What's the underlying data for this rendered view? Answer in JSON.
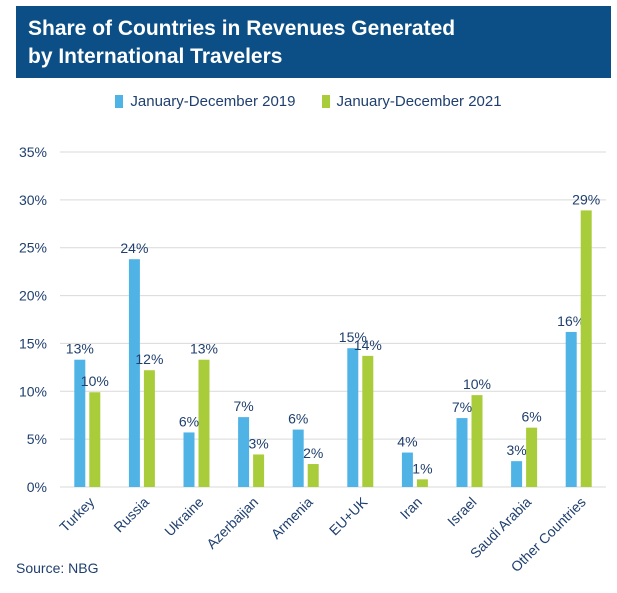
{
  "header": {
    "title_line1": "Share of Countries in Revenues Generated",
    "title_line2": "by International Travelers"
  },
  "colors": {
    "series_2019": "#4fb3e6",
    "series_2021": "#a9cd3a",
    "header_bg": "#0b4f86",
    "text": "#1f3f6e"
  },
  "source": "Source: NBG",
  "chart_data": {
    "type": "bar",
    "title": "Share of Countries in Revenues Generated by International Travelers",
    "categories": [
      "Turkey",
      "Russia",
      "Ukraine",
      "Azerbaijan",
      "Armenia",
      "EU+UK",
      "Iran",
      "Israel",
      "Saudi Arabia",
      "Other Countries"
    ],
    "series": [
      {
        "name": "January-December 2019",
        "values": [
          13.3,
          23.8,
          5.7,
          7.3,
          6.0,
          14.5,
          3.6,
          7.2,
          2.7,
          16.2
        ],
        "labels": [
          "13%",
          "24%",
          "6%",
          "7%",
          "6%",
          "15%",
          "4%",
          "7%",
          "3%",
          "16%"
        ]
      },
      {
        "name": "January-December 2021",
        "values": [
          9.9,
          12.2,
          13.3,
          3.4,
          2.4,
          13.7,
          0.8,
          9.6,
          6.2,
          28.9
        ],
        "labels": [
          "10%",
          "12%",
          "13%",
          "3%",
          "2%",
          "14%",
          "1%",
          "10%",
          "6%",
          "29%"
        ]
      }
    ],
    "ylim": [
      0,
      35
    ],
    "yticks": [
      0,
      5,
      10,
      15,
      20,
      25,
      30,
      35
    ],
    "ytick_labels": [
      "0%",
      "5%",
      "10%",
      "15%",
      "20%",
      "25%",
      "30%",
      "35%"
    ],
    "grid": true,
    "legend": "top-center",
    "xlabel": "",
    "ylabel": ""
  }
}
